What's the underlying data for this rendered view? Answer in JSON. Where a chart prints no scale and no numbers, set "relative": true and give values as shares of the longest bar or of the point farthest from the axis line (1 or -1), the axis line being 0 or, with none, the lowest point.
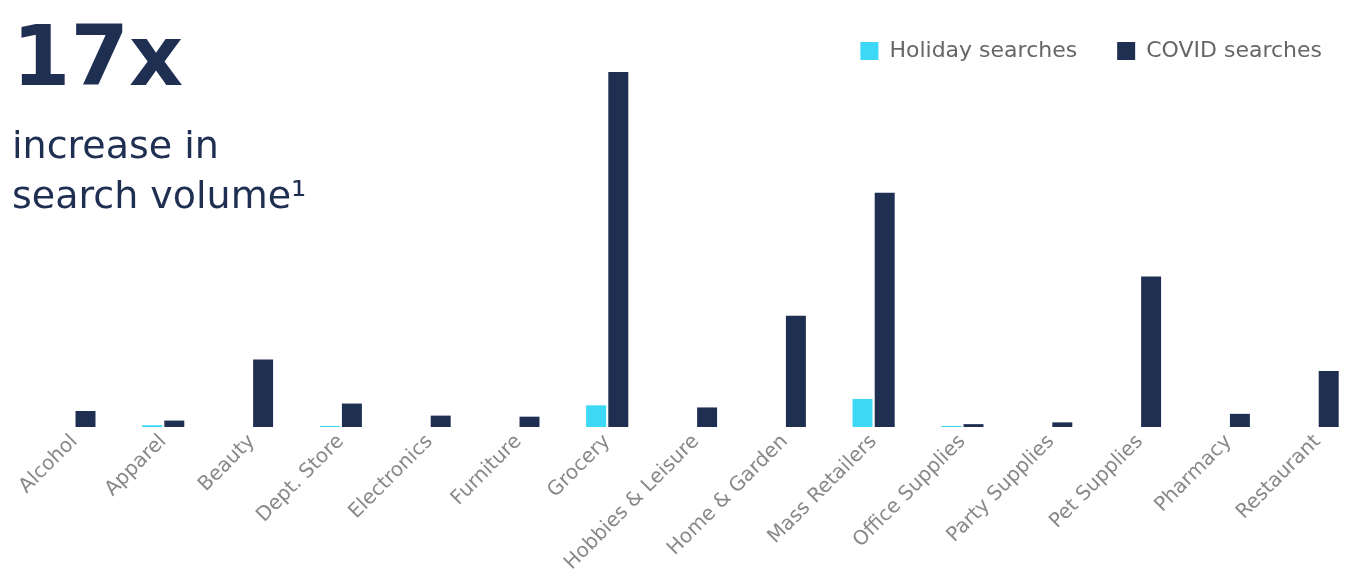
{
  "chart_data": {
    "type": "bar",
    "title": "17x",
    "subtitle": "increase in search volume¹",
    "relative": true,
    "legend": "top right",
    "grid": false,
    "categories": [
      "Alcohol",
      "Apparel",
      "Beauty",
      "Dept. Store",
      "Electronics",
      "Furniture",
      "Grocery",
      "Hobbies & Leisure",
      "Home & Garden",
      "Mass Retailers",
      "Office Supplies",
      "Party Supplies",
      "Pet Supplies",
      "Pharmacy",
      "Restaurant"
    ],
    "series": [
      {
        "name": "Holiday searches",
        "color": "#3dd8f5",
        "values": [
          null,
          0.005,
          null,
          0.003,
          null,
          null,
          0.061,
          null,
          null,
          0.079,
          0.003,
          null,
          null,
          null,
          null
        ]
      },
      {
        "name": "COVID searches",
        "color": "#1e2f52",
        "values": [
          0.045,
          0.018,
          0.19,
          0.066,
          0.032,
          0.029,
          1,
          0.055,
          0.313,
          0.66,
          0.008,
          0.013,
          0.424,
          0.037,
          0.158
        ]
      }
    ]
  }
}
